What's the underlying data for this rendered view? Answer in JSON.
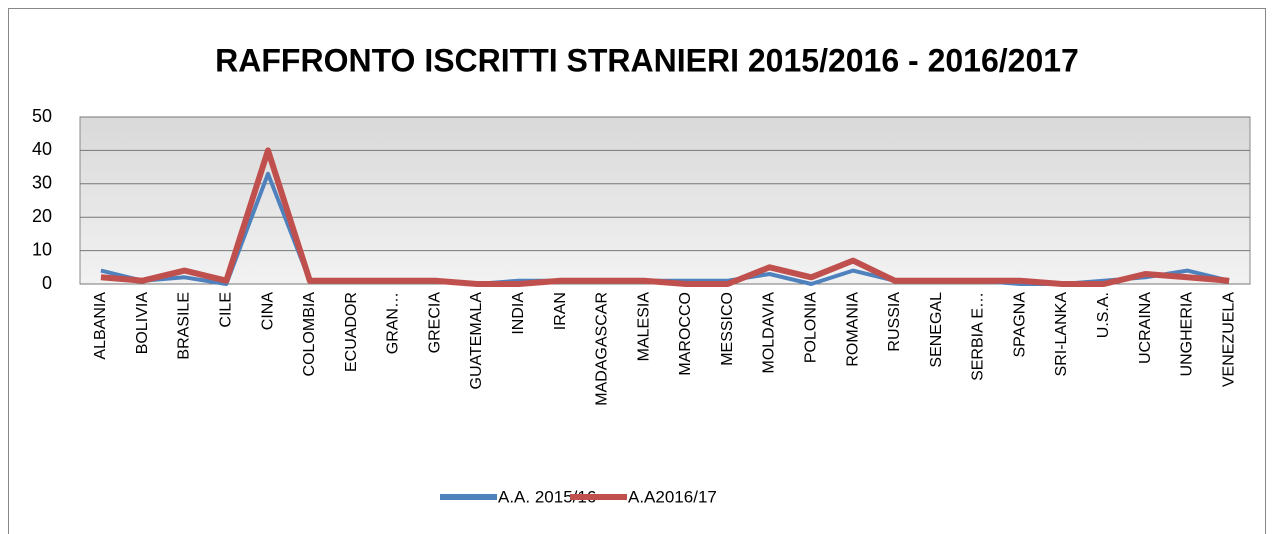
{
  "chart_data": {
    "type": "line",
    "title": "RAFFRONTO ISCRITTI STRANIERI 2015/2016 - 2016/2017",
    "categories": [
      "ALBANIA",
      "BOLIVIA",
      "BRASILE",
      "CILE",
      "CINA",
      "COLOMBIA",
      "ECUADOR",
      "GRAN…",
      "GRECIA",
      "GUATEMALA",
      "INDIA",
      "IRAN",
      "MADAGASCAR",
      "MALESIA",
      "MAROCCO",
      "MESSICO",
      "MOLDAVIA",
      "POLONIA",
      "ROMANIA",
      "RUSSIA",
      "SENEGAL",
      "SERBIA E…",
      "SPAGNA",
      "SRI-LANKA",
      "U.S.A.",
      "UCRAINA",
      "UNGHERIA",
      "VENEZUELA"
    ],
    "series": [
      {
        "name": "A.A. 2015/16",
        "color": "#4f81bd",
        "values": [
          4,
          1,
          2,
          0,
          33,
          1,
          1,
          1,
          1,
          0,
          1,
          1,
          1,
          1,
          1,
          1,
          3,
          0,
          4,
          1,
          1,
          1,
          0,
          0,
          1,
          2,
          4,
          1
        ]
      },
      {
        "name": "A.A2016/17",
        "color": "#c0504d",
        "values": [
          2,
          1,
          4,
          1,
          40,
          1,
          1,
          1,
          1,
          0,
          0,
          1,
          1,
          1,
          0,
          0,
          5,
          2,
          7,
          1,
          1,
          1,
          1,
          0,
          0,
          3,
          2,
          1
        ]
      }
    ],
    "ylim": [
      0,
      50
    ],
    "yticks": [
      0,
      10,
      20,
      30,
      40,
      50
    ],
    "grid": true,
    "legend": "bottom"
  }
}
